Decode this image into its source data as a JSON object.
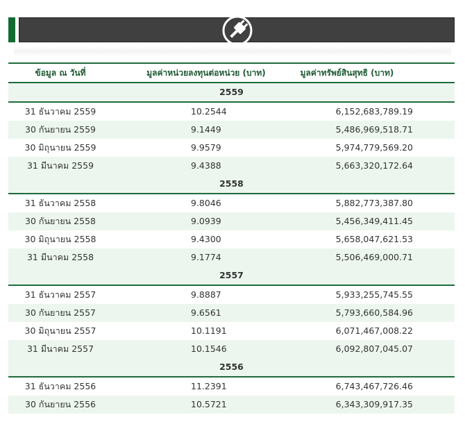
{
  "table": {
    "headers": [
      "ข้อมูล ณ วันที่",
      "มูลค่าหน่วยลงทุนต่อหน่วย (บาท)",
      "มูลค่าทรัพย์สินสุทธิ (บาท)"
    ],
    "groups": [
      {
        "year": "2559",
        "rows": [
          [
            "31 ธันวาคม 2559",
            "10.2544",
            "6,152,683,789.19"
          ],
          [
            "30 กันยายน 2559",
            "9.1449",
            "5,486,969,518.71"
          ],
          [
            "30 มิถุนายน 2559",
            "9.9579",
            "5,974,779,569.20"
          ],
          [
            "31 มีนาคม 2559",
            "9.4388",
            "5,663,320,172.64"
          ]
        ]
      },
      {
        "year": "2558",
        "rows": [
          [
            "31 ธันวาคม 2558",
            "9.8046",
            "5,882,773,387.80"
          ],
          [
            "30 กันยายน 2558",
            "9.0939",
            "5,456,349,411.45"
          ],
          [
            "30 มิถุนายน 2558",
            "9.4300",
            "5,658,047,621.53"
          ],
          [
            "31 มีนาคม 2558",
            "9.1774",
            "5,506,469,000.71"
          ]
        ]
      },
      {
        "year": "2557",
        "rows": [
          [
            "31 ธันวาคม 2557",
            "9.8887",
            "5,933,255,745.55"
          ],
          [
            "30 กันยายน 2557",
            "9.6561",
            "5,793,660,584.96"
          ],
          [
            "30 มิถุนายน 2557",
            "10.1191",
            "6,071,467,008.22"
          ],
          [
            "31 มีนาคม 2557",
            "10.1546",
            "6,092,807,045.07"
          ]
        ]
      },
      {
        "year": "2556",
        "rows": [
          [
            "31 ธันวาคม 2556",
            "11.2391",
            "6,743,467,726.46"
          ],
          [
            "30 กันยายน 2556",
            "10.5721",
            "6,343,309,917.35"
          ]
        ]
      }
    ]
  }
}
